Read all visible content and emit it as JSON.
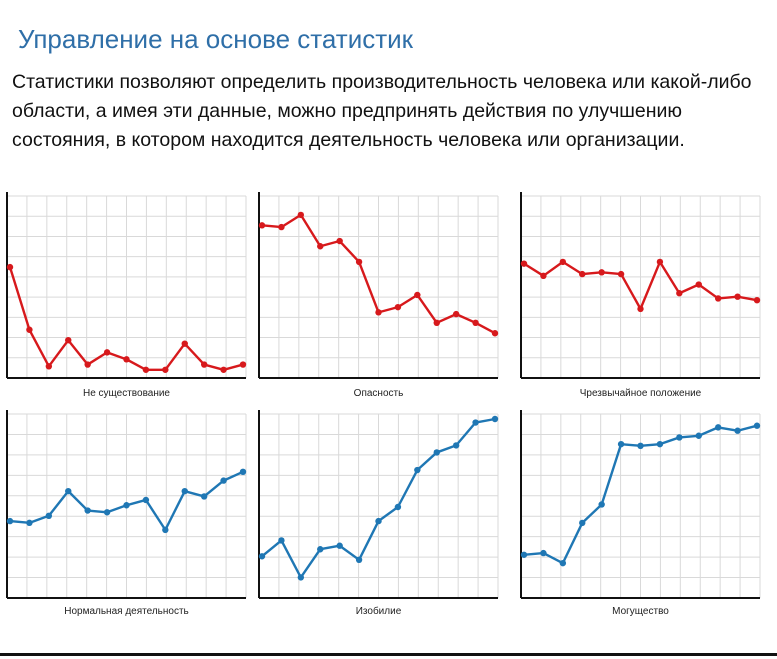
{
  "slide": {
    "title": "Управление на основе статистик",
    "description": "Статистики позволяют определить производительность человека или какой-либо области, а имея эти данные, можно предпринять действия по улучшению состояния, в котором находится деятельность человека или организации."
  },
  "colors": {
    "red": "#d7191c",
    "blue": "#1f77b4",
    "grid": "#d9d9d9",
    "axis": "#111111"
  },
  "chart_data": [
    {
      "type": "line",
      "caption": "Не существование",
      "color": "red",
      "values": [
        0.62,
        0.26,
        0.05,
        0.2,
        0.06,
        0.13,
        0.09,
        0.03,
        0.03,
        0.18,
        0.06,
        0.03,
        0.06
      ],
      "ylim": [
        0,
        1
      ]
    },
    {
      "type": "line",
      "caption": "Опасность",
      "color": "red",
      "values": [
        0.86,
        0.85,
        0.92,
        0.74,
        0.77,
        0.65,
        0.36,
        0.39,
        0.46,
        0.3,
        0.35,
        0.3,
        0.24
      ],
      "ylim": [
        0,
        1
      ]
    },
    {
      "type": "line",
      "caption": "Чрезвычайное положение",
      "color": "red",
      "values": [
        0.64,
        0.57,
        0.65,
        0.58,
        0.59,
        0.58,
        0.38,
        0.65,
        0.47,
        0.52,
        0.44,
        0.45,
        0.43
      ],
      "ylim": [
        0,
        1
      ]
    },
    {
      "type": "line",
      "caption": "Нормальная деятельность",
      "color": "blue",
      "values": [
        0.42,
        0.41,
        0.45,
        0.59,
        0.48,
        0.47,
        0.51,
        0.54,
        0.37,
        0.59,
        0.56,
        0.65,
        0.7
      ],
      "ylim": [
        0,
        1
      ]
    },
    {
      "type": "line",
      "caption": "Изобилие",
      "color": "blue",
      "values": [
        0.22,
        0.31,
        0.1,
        0.26,
        0.28,
        0.2,
        0.42,
        0.5,
        0.71,
        0.81,
        0.85,
        0.98,
        1.0
      ],
      "ylim": [
        0,
        1
      ]
    },
    {
      "type": "line",
      "caption": "Могущество",
      "color": "blue",
      "values": [
        0.24,
        0.25,
        0.19,
        0.43,
        0.54,
        0.9,
        0.89,
        0.9,
        0.94,
        0.95,
        1.0,
        0.98,
        1.01
      ],
      "ylim": [
        0,
        1.05
      ]
    }
  ]
}
